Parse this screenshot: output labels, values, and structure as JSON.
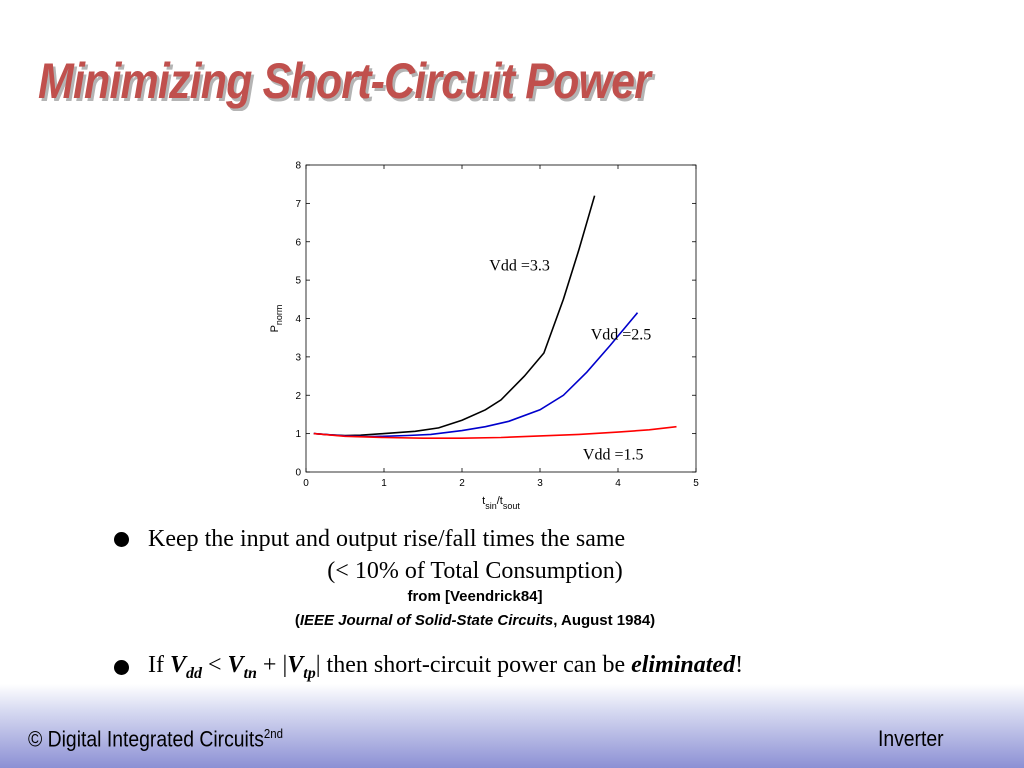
{
  "slide": {
    "title": "Minimizing Short-Circuit Power",
    "bullet1": "Keep the input and output rise/fall times the same",
    "bullet1_sub": "(< 10% of Total Consumption)",
    "citation_line1": "from [Veendrick84]",
    "citation_open": "(",
    "citation_journal": "IEEE Journal of Solid-State Circuits",
    "citation_rest": ", August 1984)",
    "bullet2_if": "If ",
    "bullet2_v1": "V",
    "bullet2_s1": "dd",
    "bullet2_lt": " < ",
    "bullet2_v2": "V",
    "bullet2_s2": "tn",
    "bullet2_plus": " + ",
    "bullet2_bar1": "|",
    "bullet2_v3": "V",
    "bullet2_s3": "tp",
    "bullet2_bar2": "|",
    "bullet2_mid": " then short-circuit power can be ",
    "bullet2_emph": "eliminated",
    "bullet2_end": "!",
    "footer_left": "© Digital Integrated Circuits",
    "footer_left_sup": "2nd",
    "footer_right": "Inverter"
  },
  "chart_data": {
    "type": "line",
    "xlabel": "t",
    "xlabel_sub1": "sin",
    "xlabel_mid": "/t",
    "xlabel_sub2": "sout",
    "ylabel": "P",
    "ylabel_sub": "norm",
    "xlim": [
      0,
      5
    ],
    "ylim": [
      0,
      8
    ],
    "xticks": [
      0,
      1,
      2,
      3,
      4,
      5
    ],
    "yticks": [
      0,
      1,
      2,
      3,
      4,
      5,
      6,
      7,
      8
    ],
    "grid": false,
    "series": [
      {
        "name": "Vdd =3.3",
        "color": "#000000",
        "x": [
          0.1,
          0.3,
          0.5,
          0.7,
          1.0,
          1.4,
          1.7,
          2.0,
          2.3,
          2.5,
          2.8,
          3.05,
          3.3,
          3.5,
          3.7
        ],
        "y": [
          1.0,
          0.97,
          0.95,
          0.96,
          1.0,
          1.06,
          1.15,
          1.35,
          1.62,
          1.88,
          2.5,
          3.1,
          4.5,
          5.8,
          7.2
        ]
      },
      {
        "name": "Vdd =2.5",
        "color": "#0000cc",
        "x": [
          0.1,
          0.5,
          0.8,
          1.0,
          1.3,
          1.6,
          2.0,
          2.3,
          2.6,
          3.0,
          3.3,
          3.6,
          3.9,
          4.25
        ],
        "y": [
          1.0,
          0.94,
          0.92,
          0.93,
          0.95,
          0.98,
          1.08,
          1.18,
          1.32,
          1.62,
          2.0,
          2.6,
          3.3,
          4.15
        ]
      },
      {
        "name": "Vdd =1.5",
        "color": "#ff0000",
        "x": [
          0.1,
          0.5,
          1.0,
          1.5,
          2.0,
          2.5,
          3.0,
          3.5,
          4.0,
          4.4,
          4.75
        ],
        "y": [
          1.0,
          0.93,
          0.9,
          0.88,
          0.88,
          0.9,
          0.94,
          0.98,
          1.04,
          1.1,
          1.18
        ]
      }
    ],
    "annotations": [
      {
        "text": "Vdd =3.3",
        "x": 2.35,
        "y": 5.25
      },
      {
        "text": "Vdd =2.5",
        "x": 3.65,
        "y": 3.45
      },
      {
        "text": "Vdd =1.5",
        "x": 3.55,
        "y": 0.32
      }
    ]
  }
}
